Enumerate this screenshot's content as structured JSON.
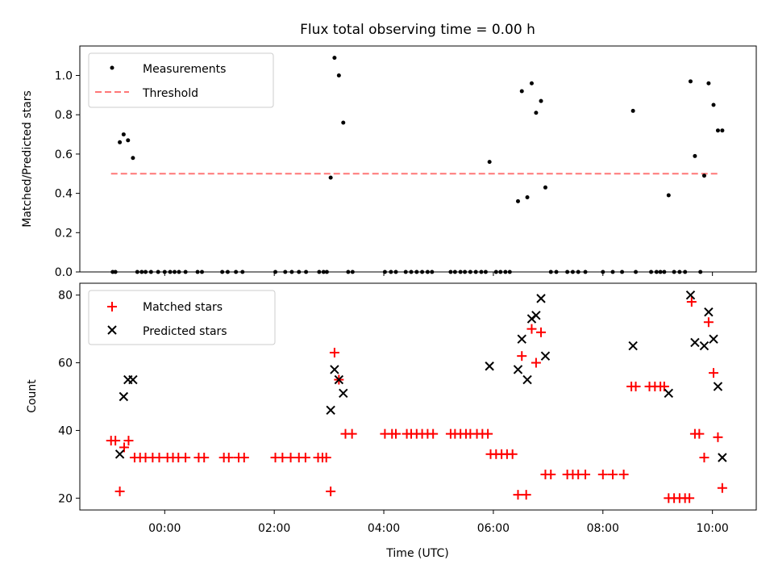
{
  "chart_data": [
    {
      "type": "scatter",
      "title": "Flux total observing time = 0.00 h",
      "ylabel": "Matched/Predicted stars",
      "xlim": [
        -1.55,
        10.8
      ],
      "ylim": [
        0,
        1.15
      ],
      "yticks": [
        "0.0",
        "0.2",
        "0.4",
        "0.6",
        "0.8",
        "1.0"
      ],
      "legend_position": "top-left",
      "grid": false,
      "series": [
        {
          "name": "Measurements",
          "color": "#000000",
          "marker": "dot",
          "points": [
            [
              -0.95,
              0
            ],
            [
              -0.9,
              0
            ],
            [
              -0.82,
              0.66
            ],
            [
              -0.75,
              0.7
            ],
            [
              -0.67,
              0.67
            ],
            [
              -0.58,
              0.58
            ],
            [
              -0.5,
              0
            ],
            [
              -0.42,
              0
            ],
            [
              -0.35,
              0
            ],
            [
              -0.25,
              0
            ],
            [
              -0.12,
              0
            ],
            [
              0.0,
              0
            ],
            [
              0.1,
              0
            ],
            [
              0.18,
              0
            ],
            [
              0.26,
              0
            ],
            [
              0.38,
              0
            ],
            [
              0.6,
              0
            ],
            [
              0.68,
              0
            ],
            [
              1.05,
              0
            ],
            [
              1.15,
              0
            ],
            [
              1.3,
              0
            ],
            [
              1.42,
              0
            ],
            [
              2.02,
              0
            ],
            [
              2.2,
              0
            ],
            [
              2.32,
              0
            ],
            [
              2.45,
              0
            ],
            [
              2.58,
              0
            ],
            [
              2.82,
              0
            ],
            [
              2.9,
              0
            ],
            [
              2.96,
              0
            ],
            [
              3.03,
              0.48
            ],
            [
              3.1,
              1.09
            ],
            [
              3.18,
              1.0
            ],
            [
              3.26,
              0.76
            ],
            [
              3.35,
              0
            ],
            [
              3.43,
              0
            ],
            [
              4.02,
              0
            ],
            [
              4.13,
              0
            ],
            [
              4.22,
              0
            ],
            [
              4.4,
              0
            ],
            [
              4.5,
              0
            ],
            [
              4.6,
              0
            ],
            [
              4.7,
              0
            ],
            [
              4.8,
              0
            ],
            [
              4.88,
              0
            ],
            [
              5.22,
              0
            ],
            [
              5.3,
              0
            ],
            [
              5.4,
              0
            ],
            [
              5.48,
              0
            ],
            [
              5.58,
              0
            ],
            [
              5.68,
              0
            ],
            [
              5.78,
              0
            ],
            [
              5.86,
              0
            ],
            [
              5.93,
              0.56
            ],
            [
              6.05,
              0
            ],
            [
              6.13,
              0
            ],
            [
              6.22,
              0
            ],
            [
              6.3,
              0
            ],
            [
              6.45,
              0.36
            ],
            [
              6.52,
              0.92
            ],
            [
              6.62,
              0.38
            ],
            [
              6.7,
              0.96
            ],
            [
              6.78,
              0.81
            ],
            [
              6.87,
              0.87
            ],
            [
              6.95,
              0.43
            ],
            [
              7.05,
              0
            ],
            [
              7.15,
              0
            ],
            [
              7.35,
              0
            ],
            [
              7.45,
              0
            ],
            [
              7.55,
              0
            ],
            [
              7.68,
              0
            ],
            [
              8.0,
              0
            ],
            [
              8.18,
              0
            ],
            [
              8.35,
              0
            ],
            [
              8.55,
              0.82
            ],
            [
              8.6,
              0
            ],
            [
              8.88,
              0
            ],
            [
              8.98,
              0
            ],
            [
              9.05,
              0
            ],
            [
              9.12,
              0
            ],
            [
              9.2,
              0.39
            ],
            [
              9.3,
              0
            ],
            [
              9.4,
              0
            ],
            [
              9.5,
              0
            ],
            [
              9.6,
              0.97
            ],
            [
              9.68,
              0.59
            ],
            [
              9.78,
              0
            ],
            [
              9.85,
              0.49
            ],
            [
              9.93,
              0.96
            ],
            [
              10.02,
              0.85
            ],
            [
              10.1,
              0.72
            ],
            [
              10.18,
              0.72
            ]
          ]
        },
        {
          "name": "Threshold",
          "color": "#ff7777",
          "style": "dashed",
          "x": [
            -0.98,
            10.1
          ],
          "y": [
            0.5,
            0.5
          ]
        }
      ]
    },
    {
      "type": "scatter",
      "xlabel": "Time (UTC)",
      "ylabel": "Count",
      "xlim": [
        -1.55,
        10.8
      ],
      "ylim": [
        16.5,
        83.5
      ],
      "xticks": [
        {
          "value": 0,
          "label": "00:00"
        },
        {
          "value": 2,
          "label": "02:00"
        },
        {
          "value": 4,
          "label": "04:00"
        },
        {
          "value": 6,
          "label": "06:00"
        },
        {
          "value": 8,
          "label": "08:00"
        },
        {
          "value": 10,
          "label": "10:00"
        }
      ],
      "yticks": [
        20,
        40,
        60,
        80
      ],
      "legend_position": "top-left",
      "grid": false,
      "series": [
        {
          "name": "Matched stars",
          "color": "#ff0000",
          "marker": "plus",
          "points": [
            [
              -0.98,
              37
            ],
            [
              -0.9,
              37
            ],
            [
              -0.82,
              22
            ],
            [
              -0.74,
              35
            ],
            [
              -0.66,
              37
            ],
            [
              -0.55,
              32
            ],
            [
              -0.45,
              32
            ],
            [
              -0.35,
              32
            ],
            [
              -0.22,
              32
            ],
            [
              -0.1,
              32
            ],
            [
              0.05,
              32
            ],
            [
              0.15,
              32
            ],
            [
              0.25,
              32
            ],
            [
              0.38,
              32
            ],
            [
              0.62,
              32
            ],
            [
              0.72,
              32
            ],
            [
              1.08,
              32
            ],
            [
              1.17,
              32
            ],
            [
              1.35,
              32
            ],
            [
              1.45,
              32
            ],
            [
              2.02,
              32
            ],
            [
              2.15,
              32
            ],
            [
              2.3,
              32
            ],
            [
              2.45,
              32
            ],
            [
              2.57,
              32
            ],
            [
              2.8,
              32
            ],
            [
              2.88,
              32
            ],
            [
              2.95,
              32
            ],
            [
              3.03,
              22
            ],
            [
              3.1,
              63
            ],
            [
              3.18,
              55
            ],
            [
              3.3,
              39
            ],
            [
              3.42,
              39
            ],
            [
              4.02,
              39
            ],
            [
              4.15,
              39
            ],
            [
              4.22,
              39
            ],
            [
              4.42,
              39
            ],
            [
              4.5,
              39
            ],
            [
              4.6,
              39
            ],
            [
              4.7,
              39
            ],
            [
              4.8,
              39
            ],
            [
              4.9,
              39
            ],
            [
              5.22,
              39
            ],
            [
              5.3,
              39
            ],
            [
              5.4,
              39
            ],
            [
              5.5,
              39
            ],
            [
              5.58,
              39
            ],
            [
              5.7,
              39
            ],
            [
              5.8,
              39
            ],
            [
              5.9,
              39
            ],
            [
              5.95,
              33
            ],
            [
              6.05,
              33
            ],
            [
              6.15,
              33
            ],
            [
              6.25,
              33
            ],
            [
              6.35,
              33
            ],
            [
              6.45,
              21
            ],
            [
              6.52,
              62
            ],
            [
              6.6,
              21
            ],
            [
              6.7,
              70
            ],
            [
              6.78,
              60
            ],
            [
              6.87,
              69
            ],
            [
              6.95,
              27
            ],
            [
              7.05,
              27
            ],
            [
              7.35,
              27
            ],
            [
              7.45,
              27
            ],
            [
              7.55,
              27
            ],
            [
              7.68,
              27
            ],
            [
              8.0,
              27
            ],
            [
              8.18,
              27
            ],
            [
              8.38,
              27
            ],
            [
              8.52,
              53
            ],
            [
              8.6,
              53
            ],
            [
              8.85,
              53
            ],
            [
              8.95,
              53
            ],
            [
              9.05,
              53
            ],
            [
              9.12,
              53
            ],
            [
              9.2,
              20
            ],
            [
              9.3,
              20
            ],
            [
              9.4,
              20
            ],
            [
              9.5,
              20
            ],
            [
              9.58,
              20
            ],
            [
              9.62,
              78
            ],
            [
              9.68,
              39
            ],
            [
              9.76,
              39
            ],
            [
              9.85,
              32
            ],
            [
              9.93,
              72
            ],
            [
              10.02,
              57
            ],
            [
              10.1,
              38
            ],
            [
              10.18,
              23
            ]
          ]
        },
        {
          "name": "Predicted stars",
          "color": "#000000",
          "marker": "x",
          "points": [
            [
              -0.82,
              33
            ],
            [
              -0.75,
              50
            ],
            [
              -0.67,
              55
            ],
            [
              -0.58,
              55
            ],
            [
              3.03,
              46
            ],
            [
              3.1,
              58
            ],
            [
              3.18,
              55
            ],
            [
              3.26,
              51
            ],
            [
              5.93,
              59
            ],
            [
              6.45,
              58
            ],
            [
              6.52,
              67
            ],
            [
              6.62,
              55
            ],
            [
              6.7,
              73
            ],
            [
              6.78,
              74
            ],
            [
              6.87,
              79
            ],
            [
              6.95,
              62
            ],
            [
              8.55,
              65
            ],
            [
              9.2,
              51
            ],
            [
              9.6,
              80
            ],
            [
              9.68,
              66
            ],
            [
              9.85,
              65
            ],
            [
              9.93,
              75
            ],
            [
              10.02,
              67
            ],
            [
              10.1,
              53
            ],
            [
              10.18,
              32
            ]
          ]
        }
      ]
    }
  ]
}
